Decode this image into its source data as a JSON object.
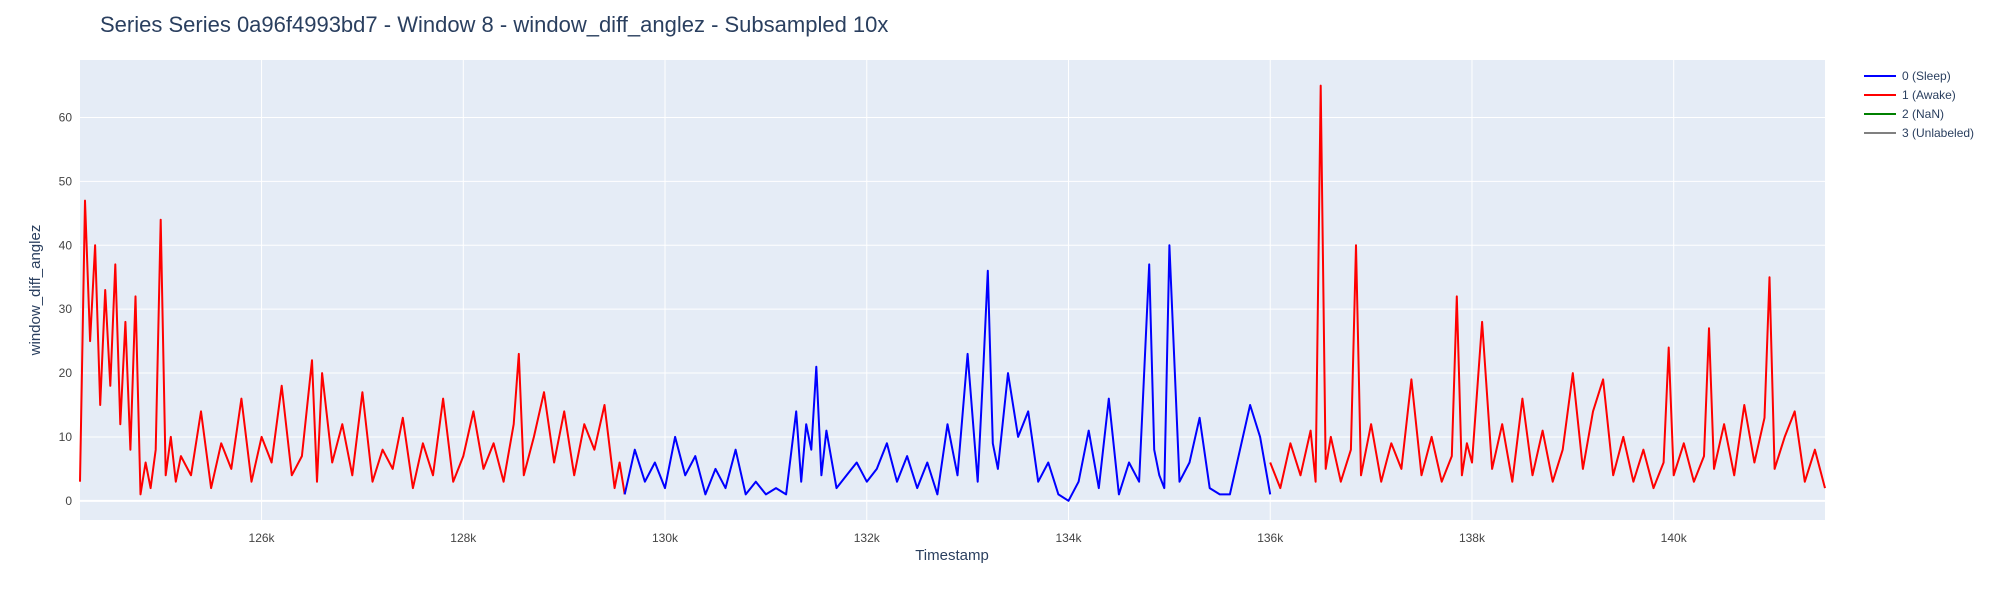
{
  "chart_data": {
    "type": "line",
    "title": "Series Series 0a96f4993bd7 - Window 8 - window_diff_anglez - Subsampled 10x",
    "xlabel": "Timestamp",
    "ylabel": "window_diff_anglez",
    "xlim": [
      124200,
      141500
    ],
    "ylim": [
      -3,
      69
    ],
    "x_ticks": [
      126000,
      128000,
      130000,
      132000,
      134000,
      136000,
      138000,
      140000
    ],
    "x_tick_labels": [
      "126k",
      "128k",
      "130k",
      "132k",
      "134k",
      "136k",
      "138k",
      "140k"
    ],
    "y_ticks": [
      0,
      10,
      20,
      30,
      40,
      50,
      60
    ],
    "y_tick_labels": [
      "0",
      "10",
      "20",
      "30",
      "40",
      "50",
      "60"
    ],
    "grid": true,
    "legend_position": "top-right",
    "legend": [
      "0 (Sleep)",
      "1 (Awake)",
      "2 (NaN)",
      "3 (Unlabeled)"
    ],
    "series": [
      {
        "name": "1 (Awake)",
        "color": "#ff0000",
        "x": [
          124200,
          124250,
          124300,
          124350,
          124400,
          124450,
          124500,
          124550,
          124600,
          124650,
          124700,
          124750,
          124800,
          124850,
          124900,
          124950,
          125000,
          125050,
          125100,
          125150,
          125200,
          125300,
          125400,
          125500,
          125600,
          125700,
          125800,
          125900,
          126000,
          126100,
          126200,
          126300,
          126400,
          126500,
          126550,
          126600,
          126700,
          126800,
          126900,
          127000,
          127100,
          127200,
          127300,
          127400,
          127500,
          127600,
          127700,
          127800,
          127900,
          128000,
          128100,
          128200,
          128300,
          128400,
          128500,
          128550,
          128600,
          128700,
          128800,
          128900,
          129000,
          129100,
          129200,
          129300,
          129400,
          129500,
          129550,
          129600
        ],
        "y": [
          3,
          47,
          25,
          40,
          15,
          33,
          18,
          37,
          12,
          28,
          8,
          32,
          1,
          6,
          2,
          8,
          44,
          4,
          10,
          3,
          7,
          4,
          14,
          2,
          9,
          5,
          16,
          3,
          10,
          6,
          18,
          4,
          7,
          22,
          3,
          20,
          6,
          12,
          4,
          17,
          3,
          8,
          5,
          13,
          2,
          9,
          4,
          16,
          3,
          7,
          14,
          5,
          9,
          3,
          12,
          23,
          4,
          10,
          17,
          6,
          14,
          4,
          12,
          8,
          15,
          2,
          6,
          1
        ]
      },
      {
        "name": "0 (Sleep)",
        "color": "#0000ff",
        "x": [
          129600,
          129700,
          129800,
          129900,
          130000,
          130100,
          130200,
          130300,
          130400,
          130500,
          130600,
          130700,
          130800,
          130900,
          131000,
          131100,
          131200,
          131300,
          131350,
          131400,
          131450,
          131500,
          131550,
          131600,
          131700,
          131800,
          131900,
          132000,
          132100,
          132200,
          132300,
          132400,
          132500,
          132600,
          132700,
          132800,
          132900,
          133000,
          133100,
          133150,
          133200,
          133250,
          133300,
          133400,
          133500,
          133600,
          133700,
          133800,
          133900,
          134000,
          134100,
          134200,
          134300,
          134400,
          134500,
          134600,
          134700,
          134800,
          134850,
          134900,
          134950,
          135000,
          135100,
          135200,
          135300,
          135400,
          135500,
          135600,
          135700,
          135800,
          135900,
          136000
        ],
        "y": [
          1,
          8,
          3,
          6,
          2,
          10,
          4,
          7,
          1,
          5,
          2,
          8,
          1,
          3,
          1,
          2,
          1,
          14,
          3,
          12,
          8,
          21,
          4,
          11,
          2,
          4,
          6,
          3,
          5,
          9,
          3,
          7,
          2,
          6,
          1,
          12,
          4,
          23,
          3,
          19,
          36,
          9,
          5,
          20,
          10,
          14,
          3,
          6,
          1,
          0,
          3,
          11,
          2,
          16,
          1,
          6,
          3,
          37,
          8,
          4,
          2,
          40,
          3,
          6,
          13,
          2,
          1,
          1,
          8,
          15,
          10,
          1
        ]
      },
      {
        "name": "1 (Awake)",
        "color": "#ff0000",
        "x": [
          136000,
          136100,
          136200,
          136300,
          136400,
          136450,
          136500,
          136550,
          136600,
          136700,
          136800,
          136850,
          136900,
          137000,
          137100,
          137200,
          137300,
          137400,
          137500,
          137600,
          137700,
          137800,
          137850,
          137900,
          137950,
          138000,
          138100,
          138200,
          138300,
          138400,
          138500,
          138600,
          138700,
          138800,
          138900,
          139000,
          139100,
          139200,
          139300,
          139400,
          139500,
          139600,
          139700,
          139800,
          139900,
          139950,
          140000,
          140100,
          140200,
          140300,
          140350,
          140400,
          140500,
          140600,
          140700,
          140800,
          140900,
          140950,
          141000,
          141100,
          141200,
          141300,
          141400,
          141500
        ],
        "y": [
          6,
          2,
          9,
          4,
          11,
          3,
          65,
          5,
          10,
          3,
          8,
          40,
          4,
          12,
          3,
          9,
          5,
          19,
          4,
          10,
          3,
          7,
          32,
          4,
          9,
          6,
          28,
          5,
          12,
          3,
          16,
          4,
          11,
          3,
          8,
          20,
          5,
          14,
          19,
          4,
          10,
          3,
          8,
          2,
          6,
          24,
          4,
          9,
          3,
          7,
          27,
          5,
          12,
          4,
          15,
          6,
          13,
          35,
          5,
          10,
          14,
          3,
          8,
          2
        ]
      },
      {
        "name": "2 (NaN)",
        "color": "#008000",
        "x": [],
        "y": []
      },
      {
        "name": "3 (Unlabeled)",
        "color": "#808080",
        "x": [],
        "y": []
      }
    ]
  },
  "legend_items": [
    {
      "label": "0 (Sleep)",
      "color": "#0000ff"
    },
    {
      "label": "1 (Awake)",
      "color": "#ff0000"
    },
    {
      "label": "2 (NaN)",
      "color": "#008000"
    },
    {
      "label": "3 (Unlabeled)",
      "color": "#808080"
    }
  ],
  "colors": {
    "plot_bg": "#e5ecf6",
    "grid": "#ffffff"
  }
}
